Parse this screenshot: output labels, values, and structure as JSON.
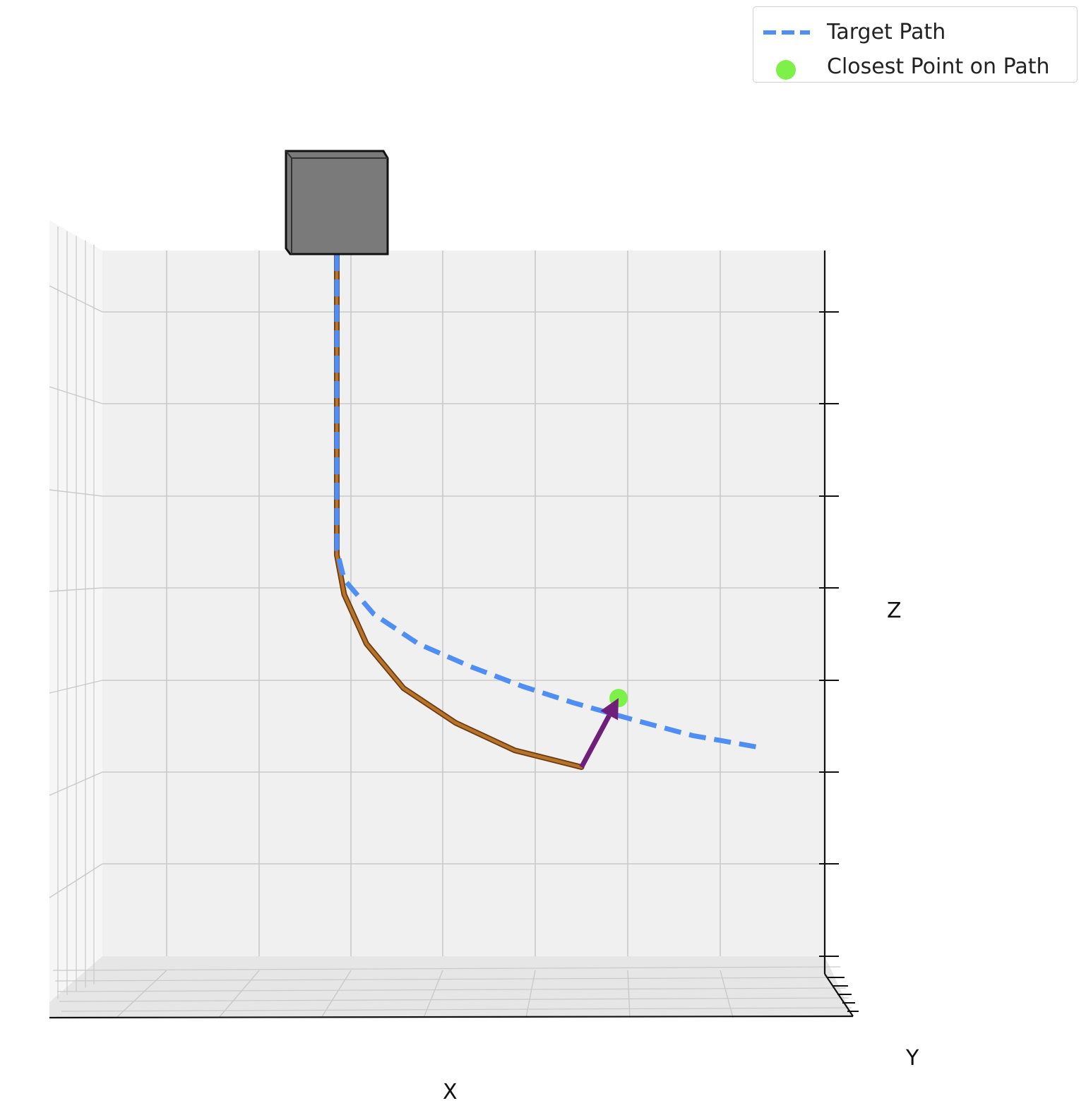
{
  "legend": {
    "items": [
      {
        "label": "Target Path",
        "color": "#4f8ff5",
        "marker": "dashed-line"
      },
      {
        "label": "Closest Point on Path",
        "color": "#7ef04a",
        "marker": "dot"
      }
    ]
  },
  "axes": {
    "xlabel": "X",
    "ylabel": "Y",
    "zlabel": "Z"
  },
  "colors": {
    "pane": "#f0f0f0",
    "grid": "#c9c9c9",
    "target_path": "#4f8ff5",
    "robot_body": "#b8732a",
    "arrow": "#6f1f7a",
    "closest_point": "#7ef04a",
    "base_cube": "#7a7a7a"
  },
  "chart_data": {
    "type": "line",
    "projection": "3d, viewed from front (X-Z plane)",
    "grid": true,
    "legend_position": "top-right",
    "xticks_count": 8,
    "zticks_count": 8,
    "series": [
      {
        "name": "Target Path",
        "style": "dashed",
        "x": [
          0.0,
          0.0,
          0.05,
          0.25,
          0.55,
          0.9,
          1.25,
          1.6,
          2.0,
          2.4,
          2.85
        ],
        "z": [
          6.5,
          3.5,
          3.2,
          2.85,
          2.55,
          2.32,
          2.12,
          1.95,
          1.78,
          1.62,
          1.5
        ]
      },
      {
        "style": "solid",
        "x": [
          0.0,
          0.0,
          0.05,
          0.2,
          0.45,
          0.8,
          1.2,
          1.65
        ],
        "z": [
          6.5,
          3.45,
          3.05,
          2.55,
          2.1,
          1.75,
          1.47,
          1.3
        ]
      }
    ],
    "closest_point": {
      "x": 1.9,
      "z": 2.0
    },
    "arrow": {
      "from": {
        "x": 1.65,
        "z": 1.3
      },
      "to": {
        "x": 1.9,
        "z": 2.0
      }
    },
    "base_cube": {
      "x": 0.0,
      "z": 6.5
    }
  }
}
